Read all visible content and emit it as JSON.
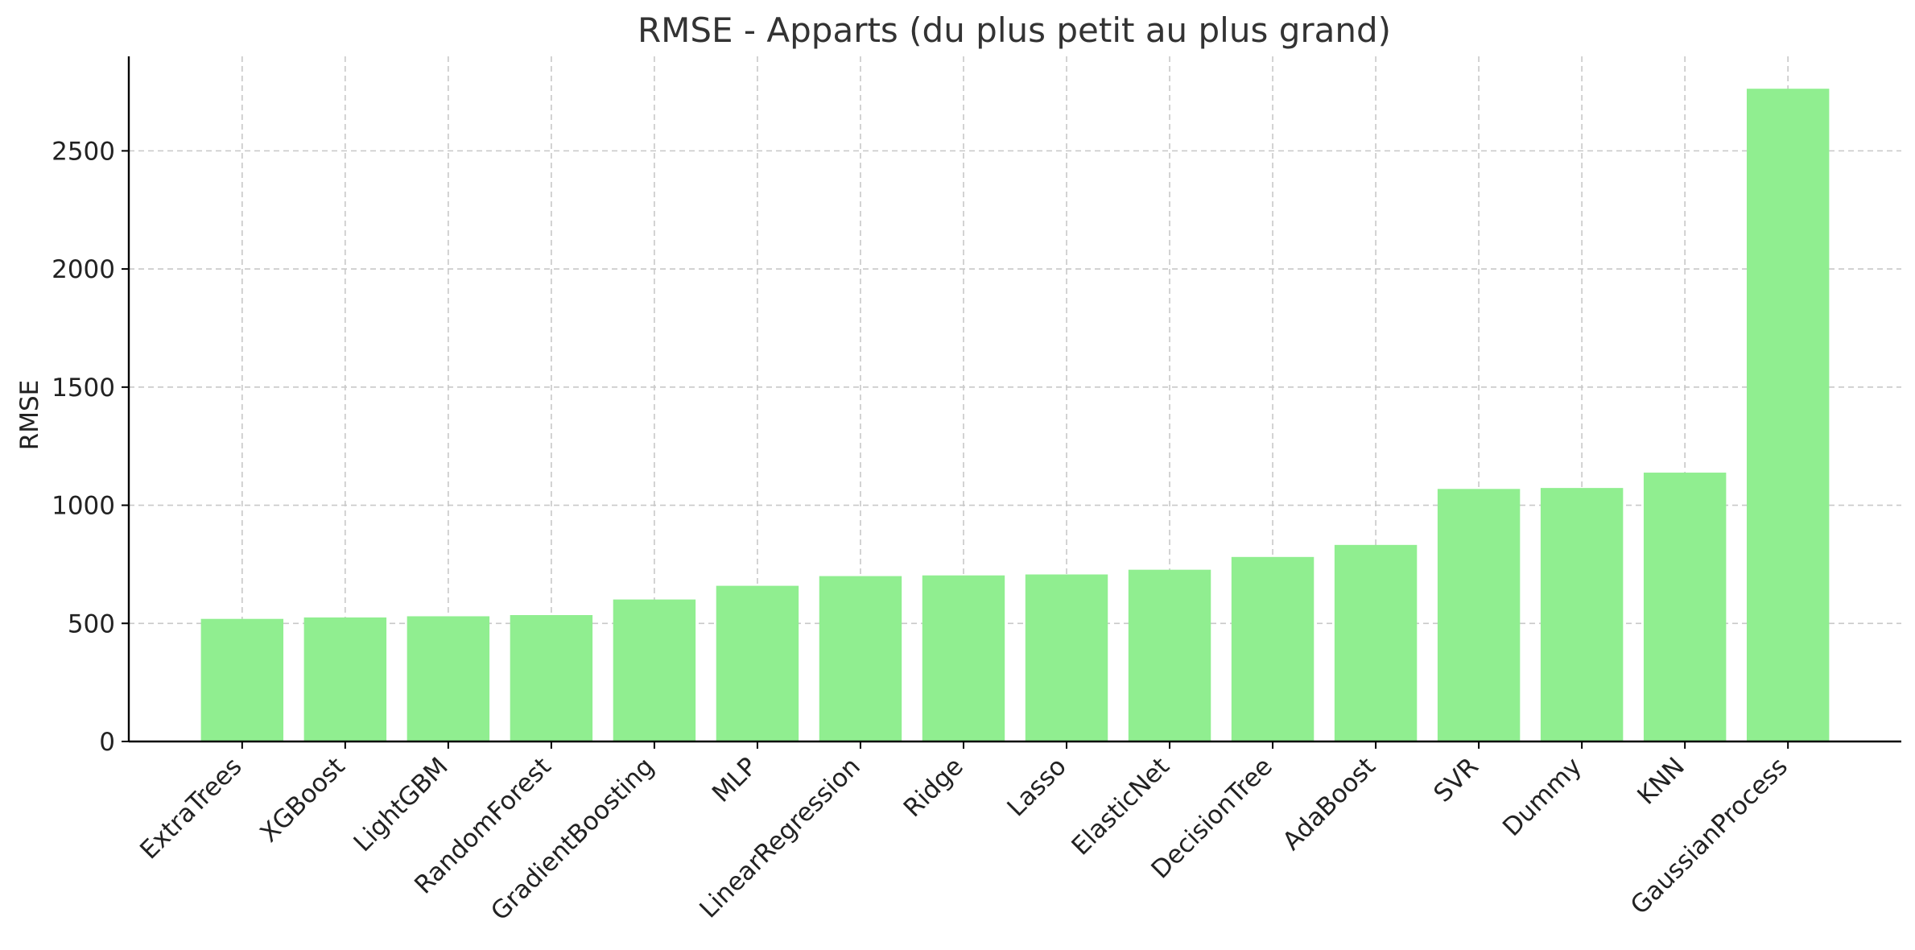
{
  "chart_data": {
    "type": "bar",
    "title": "RMSE - Apparts (du plus petit au plus grand)",
    "xlabel": "",
    "ylabel": "RMSE",
    "categories": [
      "ExtraTrees",
      "XGBoost",
      "LightGBM",
      "RandomForest",
      "GradientBoosting",
      "MLP",
      "LinearRegression",
      "Ridge",
      "Lasso",
      "ElasticNet",
      "DecisionTree",
      "AdaBoost",
      "SVR",
      "Dummy",
      "KNN",
      "GaussianProcess"
    ],
    "values": [
      519,
      525,
      530,
      535,
      601,
      659,
      700,
      703,
      707,
      727,
      781,
      832,
      1069,
      1073,
      1138,
      2763
    ],
    "ylim": [
      0,
      2900
    ],
    "yticks": [
      0,
      500,
      1000,
      1500,
      2000,
      2500
    ],
    "grid": true,
    "bar_color": "#90ee90"
  }
}
